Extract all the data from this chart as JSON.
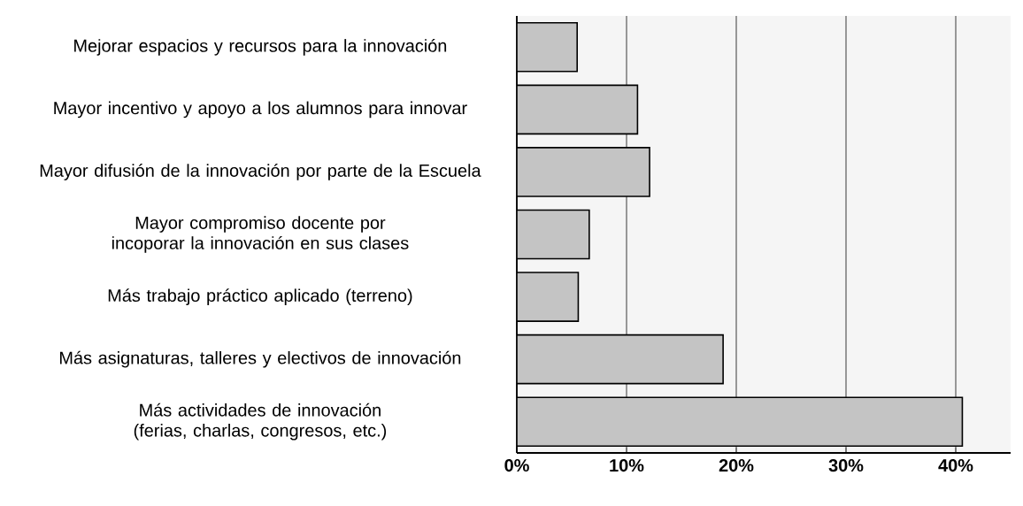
{
  "chart_data": {
    "type": "bar",
    "orientation": "horizontal",
    "categories": [
      "Mejorar espacios y recursos para la innovación",
      "Mayor incentivo y apoyo a los alumnos para innovar",
      "Mayor difusión de la innovación por parte de la Escuela",
      "Mayor compromiso docente por incoporar la innovación en sus clases",
      "Más trabajo práctico aplicado (terreno)",
      "Más asignaturas, talleres y electivos de innovación",
      "Más actividades de innovación (ferias, charlas, congresos, etc.)"
    ],
    "values": [
      5.5,
      11,
      12.1,
      6.6,
      5.6,
      18.8,
      40.6
    ],
    "color": "#c4c4c4",
    "xlim": [
      0,
      45
    ],
    "xticks": [
      {
        "value": 0,
        "label": "0%"
      },
      {
        "value": 10,
        "label": "10%"
      },
      {
        "value": 20,
        "label": "20%"
      },
      {
        "value": 30,
        "label": "30%"
      },
      {
        "value": 40,
        "label": "40%"
      }
    ],
    "grid": "x"
  }
}
